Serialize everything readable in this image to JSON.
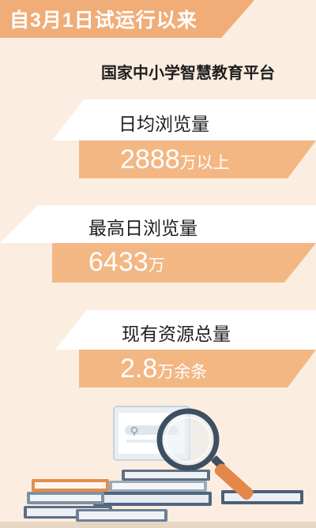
{
  "banner": {
    "text": "自3月1日试运行以来"
  },
  "platform": {
    "name": "国家中小学智慧教育平台"
  },
  "stats": [
    {
      "label": "日均浏览量",
      "value": "2888",
      "unit": "万以上"
    },
    {
      "label": "最高日浏览量",
      "value": "6433",
      "unit": "万"
    },
    {
      "label": "现有资源总量",
      "value": "2.8",
      "unit": "万余条"
    }
  ],
  "colors": {
    "background": "#fbeee0",
    "accent": "#f0ad78",
    "band": "#f3b784",
    "text": "#1e1e1e"
  },
  "illustration": {
    "icons": [
      "magnifier-icon",
      "monitor-icon",
      "book-stack-icon",
      "location-pin-icon"
    ]
  }
}
